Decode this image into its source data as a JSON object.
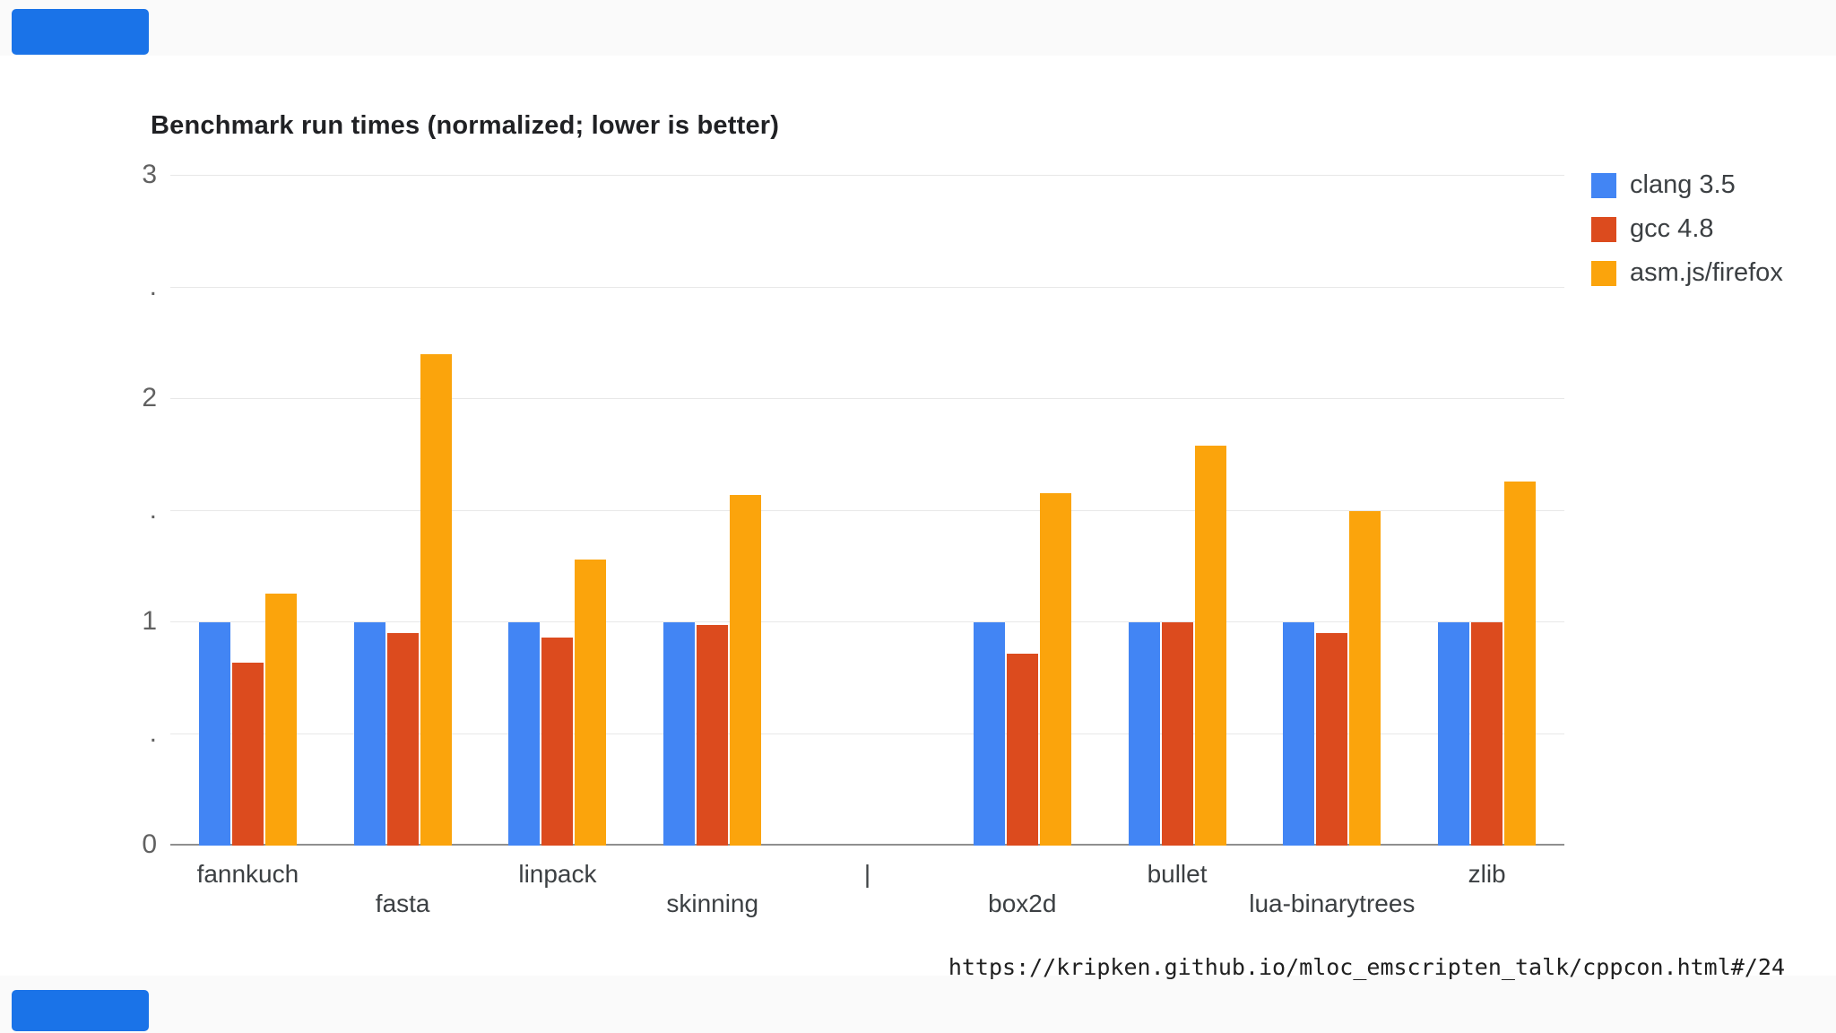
{
  "page": {
    "url_caption": "https://kripken.github.io/mloc_emscripten_talk/cppcon.html#/24"
  },
  "chart_data": {
    "type": "bar",
    "title": "Benchmark run times (normalized; lower is better)",
    "categories": [
      "fannkuch",
      "fasta",
      "linpack",
      "skinning",
      "|",
      "box2d",
      "bullet",
      "lua-binarytrees",
      "zlib"
    ],
    "series": [
      {
        "name": "clang 3.5",
        "color": "#4285f4",
        "values": [
          1.0,
          1.0,
          1.0,
          1.0,
          null,
          1.0,
          1.0,
          1.0,
          1.0
        ]
      },
      {
        "name": "gcc 4.8",
        "color": "#dc4b1e",
        "values": [
          0.82,
          0.95,
          0.93,
          0.99,
          null,
          0.86,
          1.0,
          0.95,
          1.0
        ]
      },
      {
        "name": "asm.js/firefox",
        "color": "#fba40c",
        "values": [
          1.13,
          2.2,
          1.28,
          1.57,
          null,
          1.58,
          1.79,
          1.5,
          1.63
        ]
      }
    ],
    "ylim": [
      0,
      3
    ],
    "yticks": [
      {
        "label": "3",
        "value": 3
      },
      {
        "label": ".",
        "value": 2.5
      },
      {
        "label": "2",
        "value": 2
      },
      {
        "label": ".",
        "value": 1.5
      },
      {
        "label": "1",
        "value": 1
      },
      {
        "label": ".",
        "value": 0.5
      },
      {
        "label": "0",
        "value": 0
      }
    ],
    "grid": true,
    "legend_position": "right"
  }
}
